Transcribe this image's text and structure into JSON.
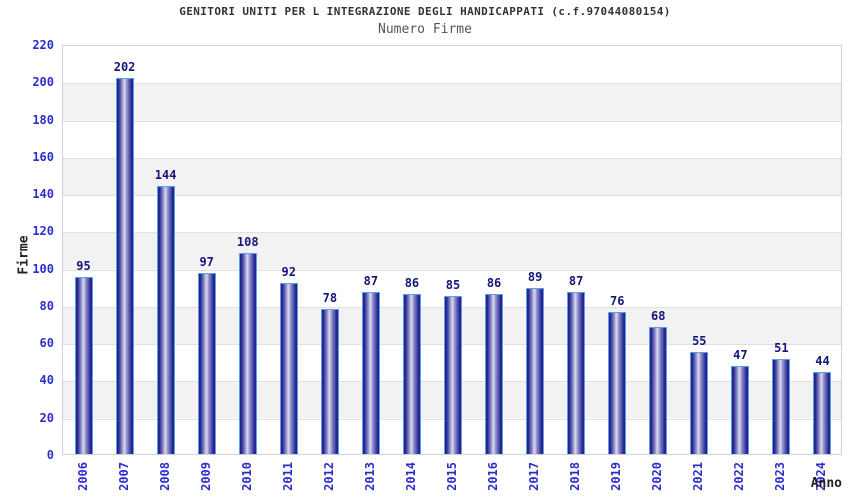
{
  "header": {
    "title": "GENITORI UNITI PER L INTEGRAZIONE DEGLI HANDICAPPATI (c.f.97044080154)",
    "subtitle": "Numero Firme"
  },
  "chart_data": {
    "type": "bar",
    "title": "GENITORI UNITI PER L INTEGRAZIONE DEGLI HANDICAPPATI (c.f.97044080154)",
    "subtitle": "Numero Firme",
    "xlabel": "Anno",
    "ylabel": "Firme",
    "categories": [
      "2006",
      "2007",
      "2008",
      "2009",
      "2010",
      "2011",
      "2012",
      "2013",
      "2014",
      "2015",
      "2016",
      "2017",
      "2018",
      "2019",
      "2020",
      "2021",
      "2022",
      "2023",
      "2024"
    ],
    "values": [
      95,
      202,
      144,
      97,
      108,
      92,
      78,
      87,
      86,
      85,
      86,
      89,
      87,
      76,
      68,
      55,
      47,
      51,
      44
    ],
    "ylim": [
      0,
      220
    ],
    "yticks": [
      0,
      20,
      40,
      60,
      80,
      100,
      120,
      140,
      160,
      180,
      200,
      220
    ],
    "grid": true,
    "legend": false,
    "value_labels": true,
    "background_bands": "alternating horizontal white / light gray every 20 units",
    "colors": {
      "title": "#333333",
      "subtitle": "#555555",
      "tick_label": "#2d2dcc",
      "value_label": "#15157c",
      "axis_title": "#222222",
      "bar_edge": "#1e1e8c",
      "bar_mid": "#8d8dc8",
      "bar_center": "#dcdcf2",
      "bar_border": "#5b9fe4",
      "plot_border": "#d0d0d0",
      "gridline": "#e0e0e0",
      "band": "#f2f2f2"
    }
  }
}
